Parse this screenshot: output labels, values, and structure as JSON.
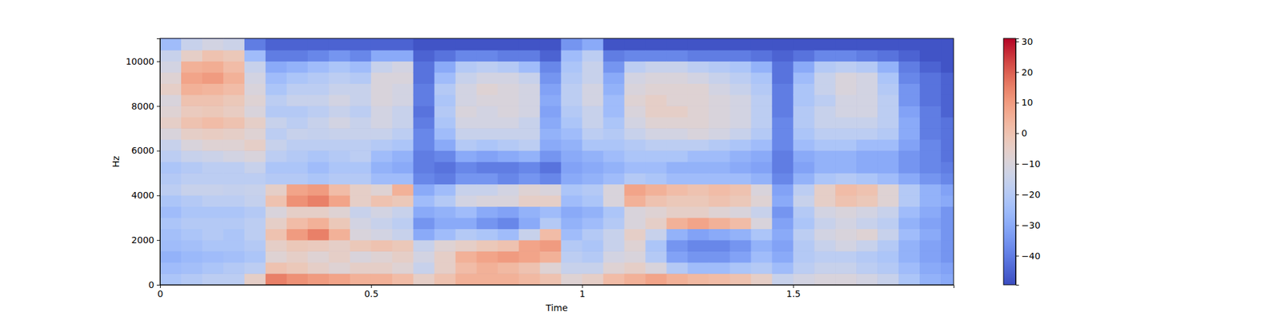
{
  "chart_data": {
    "type": "heatmap",
    "xlabel": "Time",
    "ylabel": "Hz",
    "x": [
      0.025,
      0.075,
      0.125,
      0.175,
      0.225,
      0.275,
      0.325,
      0.375,
      0.425,
      0.475,
      0.525,
      0.575,
      0.625,
      0.675,
      0.725,
      0.775,
      0.825,
      0.875,
      0.925,
      0.975,
      1.025,
      1.075,
      1.125,
      1.175,
      1.225,
      1.275,
      1.325,
      1.375,
      1.425,
      1.475,
      1.525,
      1.575,
      1.625,
      1.675,
      1.725,
      1.775,
      1.825,
      1.875
    ],
    "y": [
      250,
      750,
      1250,
      1750,
      2250,
      2750,
      3250,
      3750,
      4250,
      4750,
      5250,
      5750,
      6250,
      6750,
      7250,
      7750,
      8250,
      8750,
      9250,
      9750,
      10250,
      10750
    ],
    "z": [
      [
        -22,
        -25,
        -28,
        -25,
        -24,
        -22,
        -25,
        -22,
        -18,
        -20,
        -22,
        -18,
        -15,
        -10,
        -5,
        -8,
        -10,
        -5,
        -8,
        -12,
        -15,
        -25
      ],
      [
        -20,
        -24,
        -26,
        -24,
        -22,
        -20,
        -22,
        -20,
        -15,
        -18,
        -20,
        -15,
        -10,
        -5,
        0,
        -3,
        0,
        5,
        8,
        5,
        -5,
        -15
      ],
      [
        -18,
        -22,
        -25,
        -22,
        -20,
        -20,
        -22,
        -18,
        -15,
        -18,
        -18,
        -14,
        -8,
        -4,
        2,
        -2,
        0,
        4,
        10,
        6,
        0,
        -12
      ],
      [
        -18,
        -20,
        -24,
        -22,
        -22,
        -20,
        -22,
        -18,
        -16,
        -18,
        -18,
        -12,
        -8,
        -5,
        0,
        -4,
        -2,
        2,
        5,
        2,
        -2,
        -14
      ],
      [
        -5,
        -18,
        -22,
        -20,
        -18,
        -18,
        -20,
        -16,
        -15,
        -18,
        -15,
        -10,
        -5,
        -8,
        -5,
        -10,
        -8,
        -10,
        -12,
        -15,
        -25,
        -40
      ],
      [
        15,
        0,
        -8,
        -5,
        0,
        -5,
        -10,
        0,
        -5,
        -20,
        -22,
        -18,
        -15,
        -18,
        -15,
        -20,
        -18,
        -22,
        -25,
        -30,
        -40,
        -45
      ],
      [
        12,
        -2,
        -5,
        -2,
        10,
        2,
        -5,
        12,
        8,
        -20,
        -22,
        -20,
        -18,
        -15,
        -18,
        -20,
        -15,
        -18,
        -22,
        -28,
        -40,
        -45
      ],
      [
        10,
        -5,
        -8,
        -3,
        15,
        5,
        -5,
        15,
        10,
        -22,
        -25,
        -22,
        -18,
        -16,
        -15,
        -18,
        -15,
        -18,
        -20,
        -25,
        -38,
        -45
      ],
      [
        8,
        -8,
        -5,
        -5,
        5,
        -2,
        -8,
        8,
        2,
        -20,
        -22,
        -20,
        -18,
        -15,
        -12,
        -15,
        -12,
        -15,
        -18,
        -22,
        -35,
        -45
      ],
      [
        5,
        -5,
        -10,
        -2,
        -10,
        -12,
        -15,
        -5,
        -5,
        -20,
        -22,
        -18,
        -18,
        -15,
        -15,
        -18,
        -15,
        -15,
        -20,
        -25,
        -38,
        -45
      ],
      [
        5,
        -5,
        -8,
        0,
        -12,
        -15,
        -12,
        0,
        -8,
        -25,
        -28,
        -25,
        -20,
        -15,
        -12,
        -12,
        -10,
        -10,
        -10,
        -15,
        -30,
        -45
      ],
      [
        2,
        -8,
        -5,
        -2,
        -15,
        -18,
        -15,
        -2,
        5,
        -25,
        -30,
        -28,
        -22,
        -18,
        -15,
        -15,
        -12,
        -12,
        -10,
        -12,
        -30,
        -45
      ],
      [
        -5,
        -15,
        -12,
        -15,
        -30,
        -35,
        -30,
        -25,
        -30,
        -38,
        -40,
        -40,
        -38,
        -38,
        -40,
        -42,
        -40,
        -40,
        -42,
        -42,
        -45,
        -48
      ],
      [
        0,
        -5,
        -5,
        -8,
        -25,
        -30,
        -28,
        -20,
        -25,
        -40,
        -42,
        -38,
        -30,
        -25,
        -22,
        -20,
        -22,
        -20,
        -25,
        -30,
        -42,
        -48
      ],
      [
        5,
        2,
        5,
        -5,
        -20,
        -30,
        -25,
        -12,
        -15,
        -35,
        -38,
        -30,
        -20,
        -15,
        -12,
        -10,
        -12,
        -12,
        -15,
        -20,
        -38,
        -48
      ],
      [
        5,
        5,
        8,
        -2,
        -22,
        -35,
        -30,
        -10,
        -15,
        -35,
        -40,
        -32,
        -22,
        -15,
        -12,
        -12,
        -10,
        -8,
        -12,
        -18,
        -38,
        -48
      ],
      [
        5,
        3,
        10,
        0,
        -25,
        -38,
        -32,
        -10,
        -12,
        -38,
        -40,
        -30,
        -20,
        -15,
        -12,
        -10,
        -10,
        -10,
        -12,
        -20,
        -40,
        -48
      ],
      [
        3,
        0,
        8,
        8,
        -15,
        -30,
        -28,
        -5,
        -8,
        -35,
        -38,
        -28,
        -18,
        -15,
        -15,
        -12,
        -12,
        -12,
        -15,
        -25,
        -40,
        -48
      ],
      [
        0,
        -8,
        5,
        10,
        2,
        -20,
        -25,
        -5,
        -10,
        -38,
        -42,
        -35,
        -30,
        -28,
        -30,
        -32,
        -30,
        -32,
        -35,
        -38,
        -45,
        -48
      ],
      [
        -8,
        -15,
        -18,
        -20,
        -25,
        -28,
        -30,
        -25,
        -22,
        -30,
        -32,
        -30,
        -28,
        -25,
        -22,
        -20,
        -18,
        -18,
        -20,
        -22,
        -25,
        -35
      ],
      [
        -5,
        -15,
        -20,
        -22,
        -20,
        -25,
        -28,
        -22,
        -20,
        -28,
        -30,
        -28,
        -22,
        -18,
        -15,
        -15,
        -12,
        -12,
        -15,
        -15,
        -18,
        -30
      ],
      [
        2,
        -8,
        -12,
        -15,
        -15,
        -20,
        -22,
        -10,
        -10,
        -25,
        -28,
        -25,
        -22,
        -20,
        -22,
        -25,
        -25,
        -28,
        -30,
        -35,
        -40,
        -48
      ],
      [
        5,
        -5,
        -10,
        -8,
        -5,
        -10,
        -10,
        5,
        8,
        -20,
        -25,
        -22,
        -20,
        -15,
        -12,
        -10,
        -8,
        -10,
        -12,
        -18,
        -38,
        -48
      ],
      [
        8,
        -10,
        -20,
        -22,
        -15,
        -5,
        -8,
        0,
        5,
        -22,
        -25,
        -22,
        -18,
        -12,
        -8,
        -5,
        -5,
        -8,
        -10,
        -15,
        -38,
        -48
      ],
      [
        5,
        -20,
        -32,
        -35,
        -28,
        5,
        -5,
        -2,
        2,
        -25,
        -28,
        -22,
        -18,
        -12,
        -8,
        -5,
        -8,
        -8,
        -10,
        -15,
        -38,
        -48
      ],
      [
        3,
        -25,
        -35,
        -38,
        -32,
        8,
        -5,
        -2,
        0,
        -25,
        -28,
        -25,
        -18,
        -10,
        -8,
        -8,
        -8,
        -8,
        -12,
        -18,
        -40,
        -48
      ],
      [
        2,
        -25,
        -35,
        -38,
        -30,
        5,
        -8,
        0,
        2,
        -25,
        -28,
        -25,
        -20,
        -12,
        -10,
        -10,
        -10,
        -12,
        -15,
        -20,
        -40,
        -48
      ],
      [
        0,
        -22,
        -32,
        -35,
        -28,
        2,
        -10,
        -2,
        0,
        -25,
        -30,
        -28,
        -22,
        -15,
        -12,
        -12,
        -12,
        -15,
        -18,
        -22,
        -40,
        -48
      ],
      [
        -5,
        -20,
        -25,
        -28,
        -22,
        -10,
        -15,
        -8,
        -10,
        -28,
        -32,
        -30,
        -25,
        -20,
        -18,
        -18,
        -18,
        -20,
        -22,
        -28,
        -42,
        -48
      ],
      [
        -15,
        -25,
        -30,
        -32,
        -30,
        -32,
        -35,
        -30,
        -32,
        -38,
        -40,
        -40,
        -38,
        -38,
        -38,
        -40,
        -40,
        -40,
        -42,
        -42,
        -45,
        -48
      ],
      [
        -12,
        -18,
        -20,
        -20,
        -18,
        -22,
        -20,
        -15,
        -18,
        -28,
        -32,
        -30,
        -25,
        -22,
        -20,
        -20,
        -22,
        -22,
        -25,
        -30,
        -42,
        -48
      ],
      [
        -10,
        -15,
        -18,
        -15,
        -12,
        -15,
        -12,
        -5,
        -5,
        -22,
        -28,
        -28,
        -22,
        -18,
        -15,
        -15,
        -18,
        -15,
        -15,
        -20,
        -38,
        -48
      ],
      [
        -10,
        -15,
        -18,
        -12,
        -10,
        -12,
        -10,
        0,
        2,
        -20,
        -28,
        -28,
        -22,
        -18,
        -15,
        -12,
        -12,
        -10,
        -10,
        -18,
        -38,
        -48
      ],
      [
        -12,
        -18,
        -20,
        -15,
        -8,
        -15,
        -12,
        -2,
        0,
        -22,
        -30,
        -30,
        -25,
        -18,
        -15,
        -12,
        -12,
        -12,
        -12,
        -20,
        -40,
        -48
      ],
      [
        -15,
        -20,
        -22,
        -20,
        -15,
        -18,
        -15,
        -8,
        -8,
        -25,
        -30,
        -30,
        -25,
        -20,
        -18,
        -18,
        -18,
        -20,
        -22,
        -28,
        -42,
        -48
      ],
      [
        -22,
        -25,
        -28,
        -28,
        -25,
        -28,
        -25,
        -20,
        -20,
        -30,
        -35,
        -35,
        -32,
        -30,
        -30,
        -32,
        -35,
        -35,
        -38,
        -40,
        -45,
        -48
      ],
      [
        -28,
        -30,
        -32,
        -32,
        -30,
        -32,
        -30,
        -28,
        -28,
        -35,
        -38,
        -38,
        -38,
        -40,
        -40,
        -40,
        -42,
        -42,
        -42,
        -45,
        -48,
        -48
      ],
      [
        -30,
        -32,
        -35,
        -35,
        -35,
        -35,
        -35,
        -30,
        -32,
        -38,
        -40,
        -42,
        -42,
        -42,
        -42,
        -45,
        -45,
        -45,
        -45,
        -48,
        -48,
        -48
      ]
    ],
    "xlim": [
      0,
      1.88
    ],
    "ylim": [
      0,
      11025
    ],
    "xticks": [
      0,
      0.5,
      1,
      1.5
    ],
    "yticks": [
      0,
      2000,
      4000,
      6000,
      8000,
      10000
    ],
    "color_range": [
      -49.5,
      31
    ],
    "color_ticks": [
      {
        "value": -40,
        "label": "−40"
      },
      {
        "value": -30,
        "label": "−30"
      },
      {
        "value": -20,
        "label": "−20"
      },
      {
        "value": -10,
        "label": "−10"
      },
      0,
      10,
      20,
      30
    ]
  }
}
